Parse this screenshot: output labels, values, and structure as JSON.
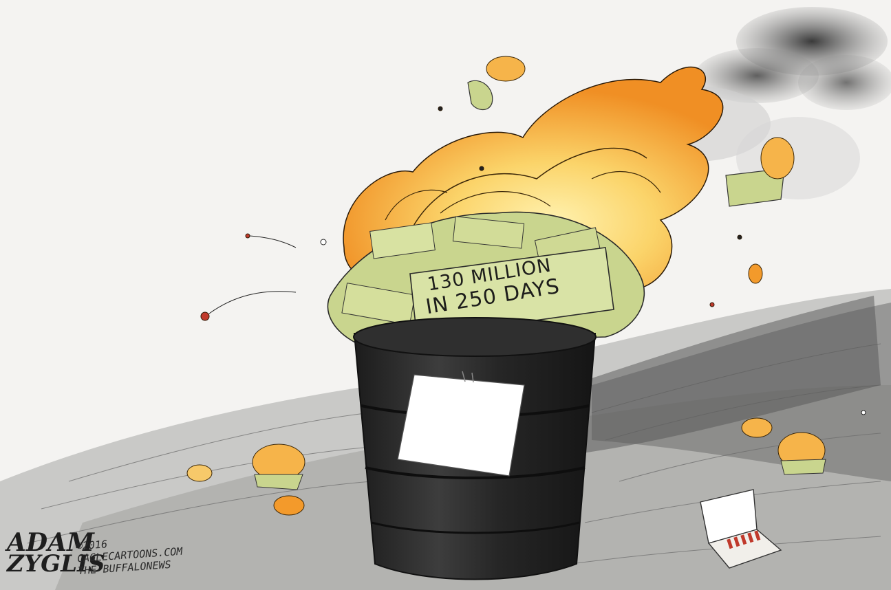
{
  "cartoon": {
    "money_label": {
      "line1": "130 MILLION",
      "line2": "IN 250 DAYS"
    },
    "signature": {
      "first": "ADAM",
      "last": "ZYGLIS"
    },
    "credits": {
      "copyright": "©2016",
      "site": "CAGLECARTOONS.COM",
      "paper": "THE BUFFALONEWS"
    }
  },
  "colors": {
    "fire_outer": "#f39a2b",
    "fire_inner": "#fbd46a",
    "money_green": "#c9d58e",
    "barrel": "#2b2b2b",
    "smoke": "#5a5a5a",
    "ground": "#9a9a9a"
  }
}
